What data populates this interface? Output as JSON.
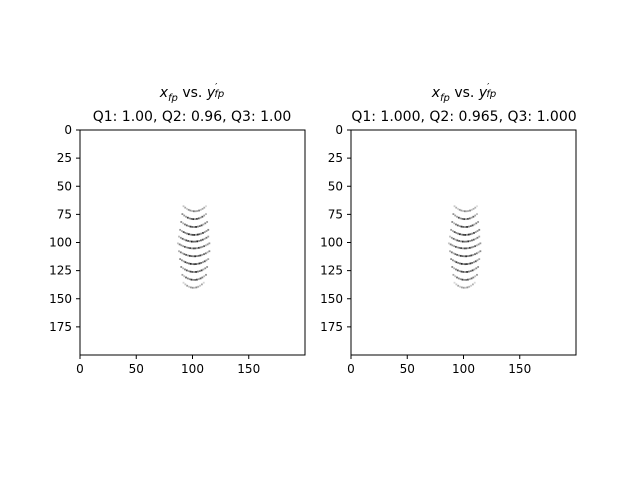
{
  "chart_data": [
    {
      "type": "heatmap",
      "title_math": {
        "x": "x",
        "x_sub": "fp",
        "vs": " vs. ",
        "y": "y",
        "y_prime": "′",
        "y_sub": "fp"
      },
      "subtitle": "Q1: 1.00, Q2: 0.96, Q3: 1.00",
      "xlim": [
        0,
        200
      ],
      "ylim": [
        200,
        0
      ],
      "xticks": [
        "0",
        "50",
        "100",
        "150"
      ],
      "yticks": [
        "0",
        "25",
        "50",
        "75",
        "100",
        "125",
        "150",
        "175"
      ],
      "colormap": "gray_r",
      "arcs": [
        {
          "y": 70,
          "x_range": [
            92,
            112
          ],
          "intensity": 0.55
        },
        {
          "y": 77,
          "x_range": [
            91,
            112
          ],
          "intensity": 0.85
        },
        {
          "y": 84,
          "x_range": [
            90,
            113
          ],
          "intensity": 0.85
        },
        {
          "y": 91,
          "x_range": [
            89,
            114
          ],
          "intensity": 0.9
        },
        {
          "y": 97,
          "x_range": [
            88,
            114
          ],
          "intensity": 0.9
        },
        {
          "y": 103,
          "x_range": [
            87,
            115
          ],
          "intensity": 0.8
        },
        {
          "y": 110,
          "x_range": [
            88,
            115
          ],
          "intensity": 0.85
        },
        {
          "y": 117,
          "x_range": [
            89,
            114
          ],
          "intensity": 0.9
        },
        {
          "y": 124,
          "x_range": [
            90,
            113
          ],
          "intensity": 0.85
        },
        {
          "y": 131,
          "x_range": [
            91,
            112
          ],
          "intensity": 0.8
        },
        {
          "y": 138,
          "x_range": [
            92,
            110
          ],
          "intensity": 0.5
        }
      ]
    },
    {
      "type": "heatmap",
      "title_math": {
        "x": "x",
        "x_sub": "fp",
        "vs": " vs. ",
        "y": "y",
        "y_prime": "′",
        "y_sub": "fp"
      },
      "subtitle": "Q1: 1.000, Q2: 0.965, Q3: 1.000",
      "xlim": [
        0,
        200
      ],
      "ylim": [
        200,
        0
      ],
      "xticks": [
        "0",
        "50",
        "100",
        "150"
      ],
      "yticks": [
        "0",
        "25",
        "50",
        "75",
        "100",
        "125",
        "150",
        "175"
      ],
      "colormap": "gray_r",
      "arcs": [
        {
          "y": 70,
          "x_range": [
            92,
            112
          ],
          "intensity": 0.5
        },
        {
          "y": 77,
          "x_range": [
            91,
            112
          ],
          "intensity": 0.8
        },
        {
          "y": 84,
          "x_range": [
            90,
            113
          ],
          "intensity": 0.85
        },
        {
          "y": 91,
          "x_range": [
            89,
            114
          ],
          "intensity": 0.9
        },
        {
          "y": 97,
          "x_range": [
            88,
            114
          ],
          "intensity": 0.85
        },
        {
          "y": 103,
          "x_range": [
            87,
            115
          ],
          "intensity": 0.8
        },
        {
          "y": 110,
          "x_range": [
            88,
            115
          ],
          "intensity": 0.85
        },
        {
          "y": 117,
          "x_range": [
            89,
            114
          ],
          "intensity": 0.9
        },
        {
          "y": 124,
          "x_range": [
            90,
            113
          ],
          "intensity": 0.85
        },
        {
          "y": 131,
          "x_range": [
            91,
            112
          ],
          "intensity": 0.75
        },
        {
          "y": 138,
          "x_range": [
            92,
            110
          ],
          "intensity": 0.45
        }
      ]
    }
  ]
}
